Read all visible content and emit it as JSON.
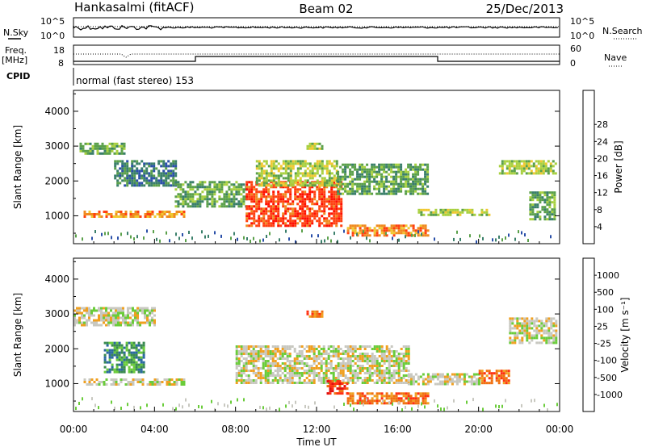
{
  "header": {
    "station": "Hankasalmi (fitACF)",
    "beam": "Beam 02",
    "date": "25/Dec/2013"
  },
  "noise_panel": {
    "left_label": "N.Sky",
    "right_label": "N.Search",
    "left_ticks": [
      "10^5",
      "10^0"
    ],
    "right_ticks": [
      "10^5",
      "10^0"
    ]
  },
  "freq_panel": {
    "left_label": "Freq.",
    "left_unit": "[MHz]",
    "right_label": "Nave",
    "left_ticks": [
      "18",
      "8"
    ],
    "right_ticks": [
      "60",
      "0"
    ],
    "cpid_label": "CPID",
    "cpid_text": "normal (fast stereo) 153"
  },
  "chart_data": [
    {
      "type": "heatmap",
      "name": "power",
      "ylabel": "Slant Range [km]",
      "y_ticks": [
        1000,
        2000,
        3000,
        4000
      ],
      "ylim": [
        200,
        4600
      ],
      "colorbar_label": "Power [dB]",
      "colorbar_ticks": [
        "4",
        "8",
        "12",
        "16",
        "20",
        "24",
        "28"
      ],
      "colorbar_colors": [
        "#1f22e0",
        "#2a4fa8",
        "#3a7f6a",
        "#5aa04a",
        "#a8d040",
        "#f0c830",
        "#f08a20",
        "#ff4010",
        "#ff1000"
      ],
      "regions": [
        {
          "t0": 0.5,
          "t1": 5.5,
          "r0": 950,
          "r1": 1150,
          "v": 22
        },
        {
          "t0": 0.3,
          "t1": 2.5,
          "r0": 2800,
          "r1": 3100,
          "v": 10
        },
        {
          "t0": 2.0,
          "t1": 5.0,
          "r0": 1900,
          "r1": 2600,
          "v": 8
        },
        {
          "t0": 5.0,
          "t1": 8.5,
          "r0": 1300,
          "r1": 2000,
          "v": 10
        },
        {
          "t0": 8.5,
          "t1": 13.2,
          "r0": 700,
          "r1": 2000,
          "v": 28
        },
        {
          "t0": 9.0,
          "t1": 13.0,
          "r0": 1900,
          "r1": 2600,
          "v": 14
        },
        {
          "t0": 13.0,
          "t1": 17.5,
          "r0": 1600,
          "r1": 2500,
          "v": 10
        },
        {
          "t0": 13.5,
          "t1": 17.5,
          "r0": 450,
          "r1": 750,
          "v": 22
        },
        {
          "t0": 11.5,
          "t1": 12.3,
          "r0": 2900,
          "r1": 3100,
          "v": 14
        },
        {
          "t0": 17.0,
          "t1": 20.5,
          "r0": 1000,
          "r1": 1200,
          "v": 14
        },
        {
          "t0": 21.0,
          "t1": 23.8,
          "r0": 2200,
          "r1": 2600,
          "v": 16
        },
        {
          "t0": 22.5,
          "t1": 23.8,
          "r0": 900,
          "r1": 1700,
          "v": 12
        }
      ]
    },
    {
      "type": "heatmap",
      "name": "velocity",
      "ylabel": "Slant Range [km]",
      "y_ticks": [
        1000,
        2000,
        3000,
        4000
      ],
      "ylim": [
        200,
        4600
      ],
      "colorbar_label": "Velocity [m s⁻¹]",
      "colorbar_ticks": [
        "1000",
        "500",
        "100",
        "25",
        "-25",
        "-100",
        "-500",
        "-1000"
      ],
      "colorbar_colors": [
        "#2030c0",
        "#2a68a0",
        "#3a8a50",
        "#6acc3a",
        "#c8c8c0",
        "#f0a020",
        "#f07010",
        "#ff3010",
        "#e01010"
      ],
      "regions": [
        {
          "t0": 0.5,
          "t1": 5.5,
          "r0": 950,
          "r1": 1150,
          "v": 0
        },
        {
          "t0": 1.5,
          "t1": 3.5,
          "r0": 1300,
          "r1": 2200,
          "v": 150
        },
        {
          "t0": 0.0,
          "t1": 4.0,
          "r0": 2700,
          "r1": 3200,
          "v": 10
        },
        {
          "t0": 8.0,
          "t1": 16.5,
          "r0": 1000,
          "r1": 2100,
          "v": 0
        },
        {
          "t0": 12.5,
          "t1": 13.5,
          "r0": 700,
          "r1": 1100,
          "v": -900
        },
        {
          "t0": 13.5,
          "t1": 17.5,
          "r0": 450,
          "r1": 750,
          "v": -200
        },
        {
          "t0": 11.5,
          "t1": 12.3,
          "r0": 2900,
          "r1": 3100,
          "v": -200
        },
        {
          "t0": 16.5,
          "t1": 20.0,
          "r0": 1000,
          "r1": 1300,
          "v": 0
        },
        {
          "t0": 20.0,
          "t1": 21.5,
          "r0": 1000,
          "r1": 1400,
          "v": -300
        },
        {
          "t0": 21.5,
          "t1": 23.8,
          "r0": 2200,
          "r1": 2900,
          "v": 0
        }
      ]
    }
  ],
  "x_axis": {
    "ticks": [
      "00:00",
      "04:00",
      "08:00",
      "12:00",
      "16:00",
      "20:00",
      "00:00"
    ],
    "xlabel": "Time UT",
    "range_hours": [
      0,
      24
    ]
  }
}
